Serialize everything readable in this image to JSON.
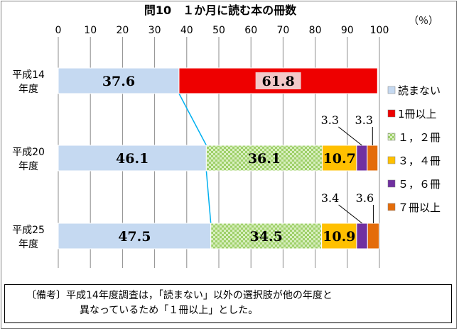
{
  "chart_data": {
    "type": "bar",
    "orientation": "horizontal",
    "stacked": true,
    "title": "問10　１か月に読む本の冊数",
    "unit_label": "（％）",
    "xlim": [
      0,
      100
    ],
    "xticks": [
      0,
      10,
      20,
      30,
      40,
      50,
      60,
      70,
      80,
      90,
      100
    ],
    "grid": true,
    "legend_position": "right",
    "categories": [
      [
        "平成14",
        "年度"
      ],
      [
        "平成20",
        "年度"
      ],
      [
        "平成25",
        "年度"
      ]
    ],
    "series": [
      {
        "name": "読まない",
        "color": "#c5d9f1",
        "pattern": "none",
        "values": [
          37.6,
          46.1,
          47.5
        ],
        "labels": [
          "37.6",
          "46.1",
          "47.5"
        ]
      },
      {
        "name": "1冊以上",
        "color": "#ee0000",
        "pattern": "none",
        "values": [
          61.8,
          null,
          null
        ],
        "labels": [
          "61.8",
          "",
          ""
        ]
      },
      {
        "name": "１，２冊",
        "color": "#b7e08a",
        "pattern": "check",
        "values": [
          null,
          36.1,
          34.5
        ],
        "labels": [
          "",
          "36.1",
          "34.5"
        ]
      },
      {
        "name": "３，４冊",
        "color": "#ffc000",
        "pattern": "none",
        "values": [
          null,
          10.7,
          10.9
        ],
        "labels": [
          "",
          "10.7",
          "10.9"
        ]
      },
      {
        "name": "５，６冊",
        "color": "#7030a0",
        "pattern": "none",
        "values": [
          null,
          3.3,
          3.4
        ],
        "labels": [
          "",
          "3.3",
          "3.4"
        ]
      },
      {
        "name": "７冊以上",
        "color": "#e46c0a",
        "pattern": "none",
        "values": [
          null,
          3.3,
          3.6
        ],
        "labels": [
          "",
          "3.3",
          "3.6"
        ]
      }
    ],
    "connector_color": "#00b0f0"
  },
  "note": {
    "line1": "〔備考〕平成14年度調査は，「読まない」以外の選択肢が他の年度と",
    "line2": "異なっているため「１冊以上」とした。"
  }
}
